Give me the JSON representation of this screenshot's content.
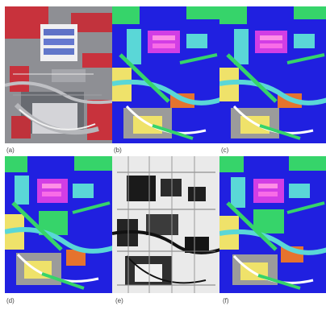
{
  "figure": {
    "panels": [
      {
        "label": "(a)",
        "kind": "false-color-composite"
      },
      {
        "label": "(b)",
        "kind": "classification-map"
      },
      {
        "label": "(c)",
        "kind": "classification-map"
      },
      {
        "label": "(d)",
        "kind": "classification-map"
      },
      {
        "label": "(e)",
        "kind": "grayscale-feature-map"
      },
      {
        "label": "(f)",
        "kind": "classification-map"
      }
    ],
    "colors": {
      "false_color_red": "#c8323c",
      "false_color_gray": "#8f9196",
      "class_blue": "#2020e0",
      "class_green": "#36d46a",
      "class_cyan": "#5ad7d7",
      "class_magenta": "#d23ee5",
      "class_yellow": "#efe26a",
      "class_orange": "#e5732e",
      "class_gray": "#9b9b9b",
      "gray_map_white": "#f5f5f5",
      "gray_map_black": "#1a1a1a"
    }
  }
}
